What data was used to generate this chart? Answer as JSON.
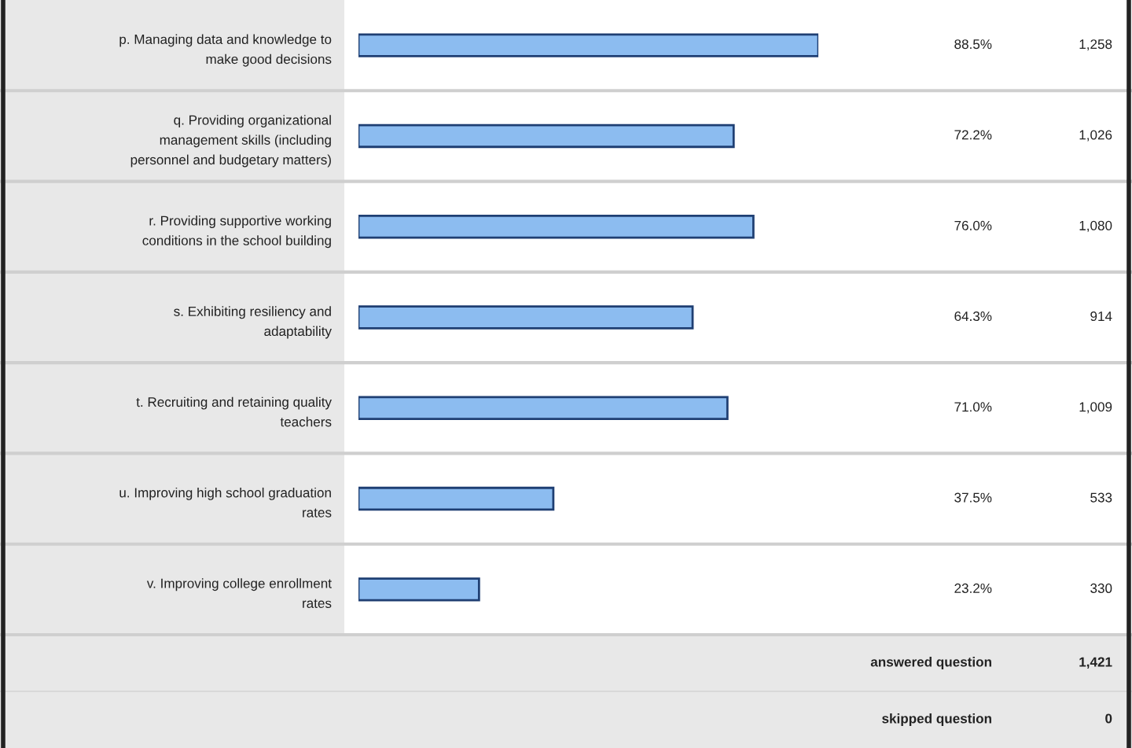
{
  "chart_data": {
    "type": "bar",
    "orientation": "horizontal",
    "categories": [
      "p. Managing data and knowledge to\nmake good decisions",
      "q. Providing organizational\nmanagement skills (including\npersonnel and budgetary matters)",
      "r. Providing supportive working\nconditions in the school building",
      "s. Exhibiting resiliency and\nadaptability",
      "t. Recruiting and retaining quality\nteachers",
      "u. Improving high school graduation\nrates",
      "v. Improving college enrollment\nrates"
    ],
    "values": [
      88.5,
      72.2,
      76.0,
      64.3,
      71.0,
      37.5,
      23.2
    ],
    "value_labels": [
      "88.5%",
      "72.2%",
      "76.0%",
      "64.3%",
      "71.0%",
      "37.5%",
      "23.2%"
    ],
    "color": "#8cbcf0",
    "tick_labels": "y",
    "annotations": [
      "1,258",
      "1,026",
      "1,080",
      "914",
      "1,009",
      "533",
      "330",
      "answered question",
      "1,421",
      "skipped question",
      "0"
    ]
  }
}
